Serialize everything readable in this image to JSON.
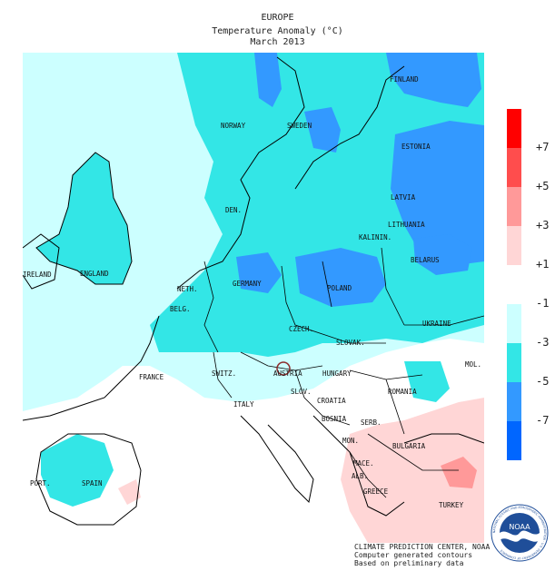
{
  "title": {
    "line1": "EUROPE",
    "line2": "Temperature Anomaly (°C)",
    "line3": "March 2013"
  },
  "legend": {
    "labels": [
      "+7",
      "+5",
      "+3",
      "+1",
      "-1",
      "-3",
      "-5",
      "-7"
    ],
    "colors": [
      "#ff0000",
      "#ff4d4d",
      "#ff9999",
      "#ffd6d6",
      "#ffffff",
      "#ccffff",
      "#33e6e6",
      "#3399ff",
      "#0066ff"
    ]
  },
  "countries": {
    "finland": "FINLAND",
    "norway": "NORWAY",
    "sweden": "SWEDEN",
    "estonia": "ESTONIA",
    "latvia": "LATVIA",
    "lithuania": "LITHUANIA",
    "kalinin": "KALININ.",
    "belarus": "BELARUS",
    "den": "DEN.",
    "ireland": "IRELAND",
    "england": "ENGLAND",
    "neth": "NETH.",
    "belg": "BELG.",
    "germany": "GERMANY",
    "poland": "POLAND",
    "czech": "CZECH.",
    "slovak": "SLOVAK.",
    "ukraine": "UKRAINE",
    "france": "FRANCE",
    "switz": "SWITZ.",
    "austria": "AUSTRIA",
    "hungary": "HUNGARY",
    "mol": "MOL.",
    "romania": "ROMANIA",
    "slov": "SLOV.",
    "croatia": "CROATIA",
    "italy": "ITALY",
    "bosnia": "BOSNIA",
    "serb": "SERB.",
    "mon": "MON.",
    "bulgaria": "BULGARIA",
    "mace": "MACE.",
    "alb": "ALB.",
    "greece": "GREECE",
    "turkey": "TURKEY",
    "spain": "SPAIN",
    "port": "PORT."
  },
  "credits": {
    "line1": "CLIMATE PREDICTION CENTER, NOAA",
    "line2": "Computer generated contours",
    "line3": "Based on preliminary data"
  },
  "logo": {
    "text": "NOAA",
    "ring": "NATIONAL OCEANIC AND ATMOSPHERIC ADMINISTRATION · U.S. DEPARTMENT OF COMMERCE"
  }
}
